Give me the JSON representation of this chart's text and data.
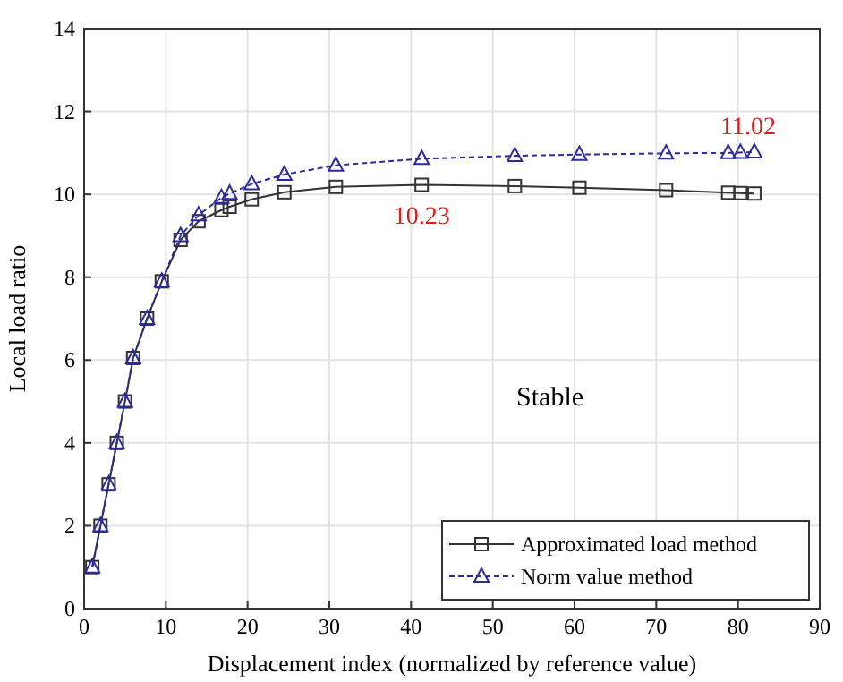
{
  "chart_data": {
    "type": "line",
    "xlabel": "Displacement index (normalized by reference value)",
    "ylabel": "Local load ratio",
    "xlim": [
      0,
      90
    ],
    "xticks": [
      0,
      10,
      20,
      30,
      40,
      50,
      60,
      70,
      80,
      90
    ],
    "ylim": [
      0,
      14
    ],
    "yticks": [
      0,
      2,
      4,
      6,
      8,
      10,
      12,
      14
    ],
    "grid": true,
    "legend": "bottom right",
    "series": [
      {
        "name": "Approximated load method",
        "color": "#333333",
        "marker": "square",
        "line_style": "solid",
        "x": [
          1,
          2,
          3,
          4,
          5,
          6,
          7.7,
          9.5,
          11.8,
          14,
          16.8,
          17.8,
          20.5,
          24.5,
          30.8,
          41.3,
          52.7,
          60.6,
          71.2,
          78.8,
          80.3,
          82
        ],
        "values": [
          1,
          2,
          3,
          4,
          5,
          6.05,
          7,
          7.9,
          8.9,
          9.35,
          9.62,
          9.7,
          9.88,
          10.05,
          10.18,
          10.23,
          10.2,
          10.16,
          10.1,
          10.04,
          10.03,
          10.02
        ]
      },
      {
        "name": "Norm value method",
        "color": "#2b2b99",
        "marker": "triangle",
        "line_style": "dashed",
        "x": [
          1,
          2,
          3,
          4,
          5,
          6,
          7.7,
          9.5,
          11.8,
          14,
          16.8,
          17.8,
          20.5,
          24.5,
          30.8,
          41.3,
          52.7,
          60.6,
          71.2,
          78.8,
          80.3,
          82
        ],
        "values": [
          1,
          2,
          3,
          4,
          5,
          6.05,
          7,
          7.9,
          9.0,
          9.5,
          9.92,
          10.02,
          10.25,
          10.48,
          10.7,
          10.86,
          10.93,
          10.96,
          10.99,
          11.0,
          11.01,
          11.02
        ]
      }
    ],
    "annotations": [
      {
        "text": "10.23",
        "x": 41.3,
        "y": 10.23
      },
      {
        "text": "11.02",
        "x": 82,
        "y": 11.02
      },
      "Stable"
    ]
  }
}
